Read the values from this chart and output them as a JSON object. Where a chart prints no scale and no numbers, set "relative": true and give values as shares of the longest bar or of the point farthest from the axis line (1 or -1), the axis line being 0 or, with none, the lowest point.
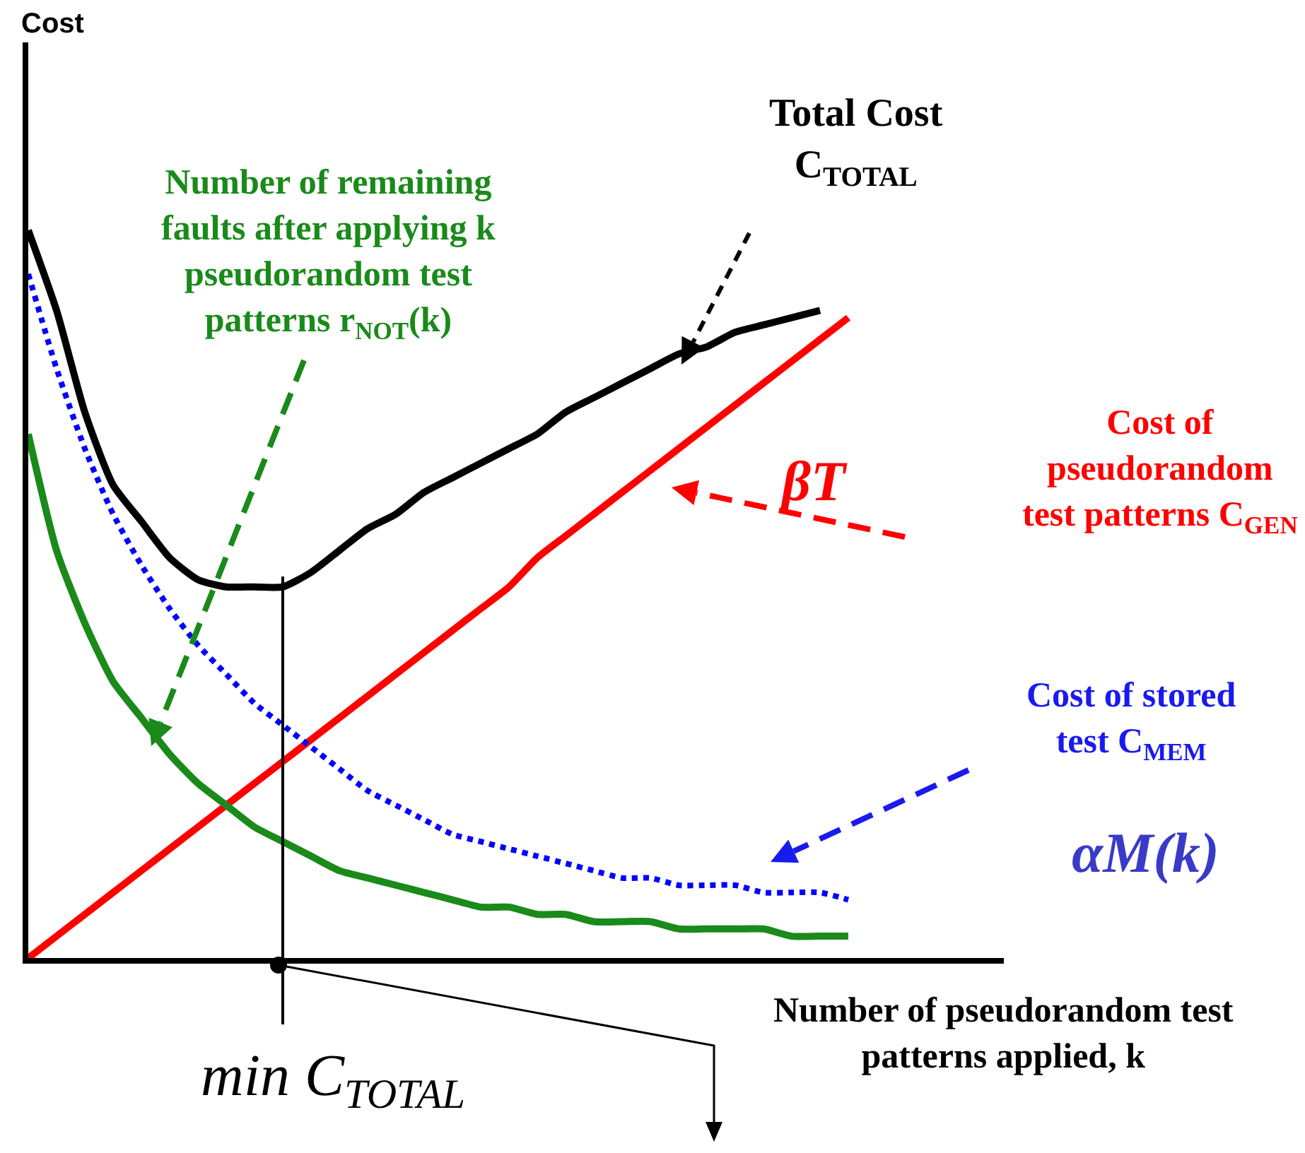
{
  "chart_data": {
    "type": "line",
    "relative": true,
    "xlabel": "Number of pseudorandom test\npatterns applied, k",
    "categories": [
      null,
      null,
      null,
      null,
      null,
      null,
      null,
      null,
      null,
      null,
      null,
      null,
      null,
      null,
      null,
      null,
      null,
      null,
      null,
      null,
      null,
      null,
      null,
      null,
      null,
      null,
      null,
      null,
      null,
      null
    ],
    "series": [
      {
        "color": "#000000",
        "line_style": "solid",
        "values": [
          1.0,
          0.89,
          0.75,
          0.65,
          0.6,
          0.55,
          0.52,
          0.51,
          0.51,
          0.51,
          0.53,
          0.56,
          0.59,
          0.61,
          0.64,
          0.66,
          0.68,
          0.7,
          0.72,
          0.75,
          0.77,
          0.79,
          0.81,
          0.83,
          0.84,
          0.86,
          0.87,
          0.88,
          0.89,
          null
        ]
      },
      {
        "color": "#ff0000",
        "line_style": "solid",
        "values": [
          0,
          0.03,
          0.06,
          0.09,
          0.12,
          0.15,
          0.18,
          0.21,
          0.24,
          0.27,
          0.3,
          0.33,
          0.36,
          0.39,
          0.42,
          0.45,
          0.48,
          0.51,
          0.55,
          0.58,
          0.61,
          0.64,
          0.67,
          0.7,
          0.73,
          0.76,
          0.79,
          0.82,
          0.85,
          0.88
        ]
      },
      {
        "color": "#0000ff",
        "line_style": "dotted",
        "values": [
          0.94,
          0.81,
          0.7,
          0.61,
          0.54,
          0.48,
          0.43,
          0.39,
          0.35,
          0.32,
          0.29,
          0.26,
          0.23,
          0.21,
          0.19,
          0.17,
          0.16,
          0.15,
          0.14,
          0.13,
          0.12,
          0.11,
          0.11,
          0.1,
          0.1,
          0.1,
          0.09,
          0.09,
          0.09,
          0.08
        ]
      },
      {
        "color": "#1a8a1a",
        "line_style": "solid",
        "values": [
          0.72,
          0.56,
          0.46,
          0.38,
          0.33,
          0.28,
          0.24,
          0.21,
          0.18,
          0.16,
          0.14,
          0.12,
          0.11,
          0.1,
          0.09,
          0.08,
          0.07,
          0.07,
          0.06,
          0.06,
          0.05,
          0.05,
          0.05,
          0.04,
          0.04,
          0.04,
          0.04,
          0.03,
          0.03,
          0.03
        ]
      }
    ],
    "annotations": [
      "Total Cost\nC$_{TOTAL}$",
      "Number of remaining\nfaults after applying k\npseudorandom test\npatterns r$_{NOT}$(k)",
      "βT",
      "Cost of\npseudorandom\ntest patterns C$_{GEN}$",
      "Cost of stored\ntest C$_{MEM}$",
      "αM(k)",
      "min C$_{TOTAL}$",
      "Cost"
    ],
    "grid": false
  }
}
